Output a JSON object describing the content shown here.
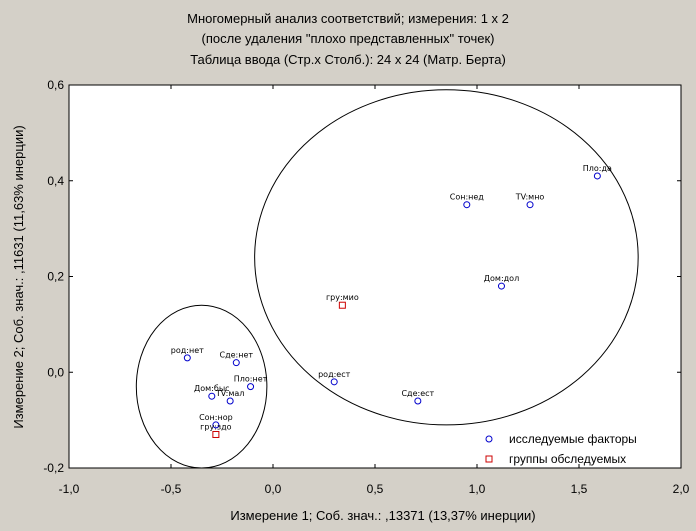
{
  "chart_data": {
    "type": "scatter",
    "title": [
      "Многомерный анализ соответствий; измерения: 1 x 2",
      "(после удаления \"плохо представленных\" точек)",
      "Таблица ввода (Стр.x Столб.): 24 x 24 (Матр. Берта)"
    ],
    "xlabel": "Измерение 1; Соб. знач.: ,13371 (13,37% инерции)",
    "ylabel": "Измерение 2; Соб. знач.: ,11631 (11,63% инерции)",
    "xlim": [
      -1.0,
      2.0
    ],
    "ylim": [
      -0.2,
      0.6
    ],
    "x_ticks": [
      "-1,0",
      "-0,5",
      "0,0",
      "0,5",
      "1,0",
      "1,5",
      "2,0"
    ],
    "y_ticks": [
      "-0,2",
      "0,0",
      "0,2",
      "0,4",
      "0,6"
    ],
    "grid": false,
    "legend_position": "bottom-right",
    "series": [
      {
        "name": "исследуемые факторы",
        "marker": "circle",
        "color": "#0000cc",
        "points": [
          {
            "x": 1.59,
            "y": 0.41,
            "label": "Пло:да"
          },
          {
            "x": 0.95,
            "y": 0.35,
            "label": "Сон:нед"
          },
          {
            "x": 1.26,
            "y": 0.35,
            "label": "TV:мно"
          },
          {
            "x": 1.12,
            "y": 0.18,
            "label": "Дом:дол"
          },
          {
            "x": 0.3,
            "y": -0.02,
            "label": "род:ест"
          },
          {
            "x": 0.71,
            "y": -0.06,
            "label": "Сде:ест"
          },
          {
            "x": -0.42,
            "y": 0.03,
            "label": "род:нет"
          },
          {
            "x": -0.18,
            "y": 0.02,
            "label": "Сде:нет"
          },
          {
            "x": -0.11,
            "y": -0.03,
            "label": "Пло:нет"
          },
          {
            "x": -0.3,
            "y": -0.05,
            "label": "Дом:быс"
          },
          {
            "x": -0.21,
            "y": -0.06,
            "label": "TV:мал"
          },
          {
            "x": -0.28,
            "y": -0.11,
            "label": "Сон:нор"
          }
        ]
      },
      {
        "name": "группы обследуемых",
        "marker": "square",
        "color": "#cc0000",
        "points": [
          {
            "x": 0.34,
            "y": 0.14,
            "label": "гру:мио"
          },
          {
            "x": -0.28,
            "y": -0.13,
            "label": "гру:здо"
          }
        ]
      }
    ],
    "ellipses": [
      {
        "cx": -0.35,
        "cy": -0.03,
        "rx": 0.32,
        "ry": 0.17
      },
      {
        "cx": 0.85,
        "cy": 0.24,
        "rx": 0.94,
        "ry": 0.35
      }
    ]
  }
}
